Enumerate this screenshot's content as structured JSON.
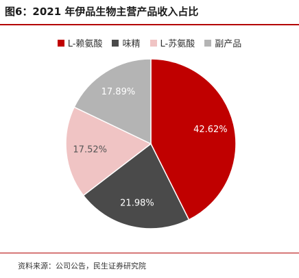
{
  "chart_data": {
    "type": "pie",
    "title": "图6：2021 年伊品生物主营产品收入占比",
    "categories": [
      "L-赖氨酸",
      "味精",
      "L-苏氨酸",
      "副产品"
    ],
    "values": [
      42.62,
      21.98,
      17.52,
      17.89
    ],
    "value_labels": [
      "42.62%",
      "21.98%",
      "17.52%",
      "17.89%"
    ],
    "colors": [
      "#c00000",
      "#4a4a4a",
      "#f0c4c4",
      "#b4b4b4"
    ],
    "label_colors": [
      "#ffffff",
      "#ffffff",
      "#555555",
      "#ffffff"
    ],
    "legend_position": "top",
    "start_angle": "12 o'clock, clockwise"
  },
  "source": "资料来源：公司公告，民生证券研究院"
}
